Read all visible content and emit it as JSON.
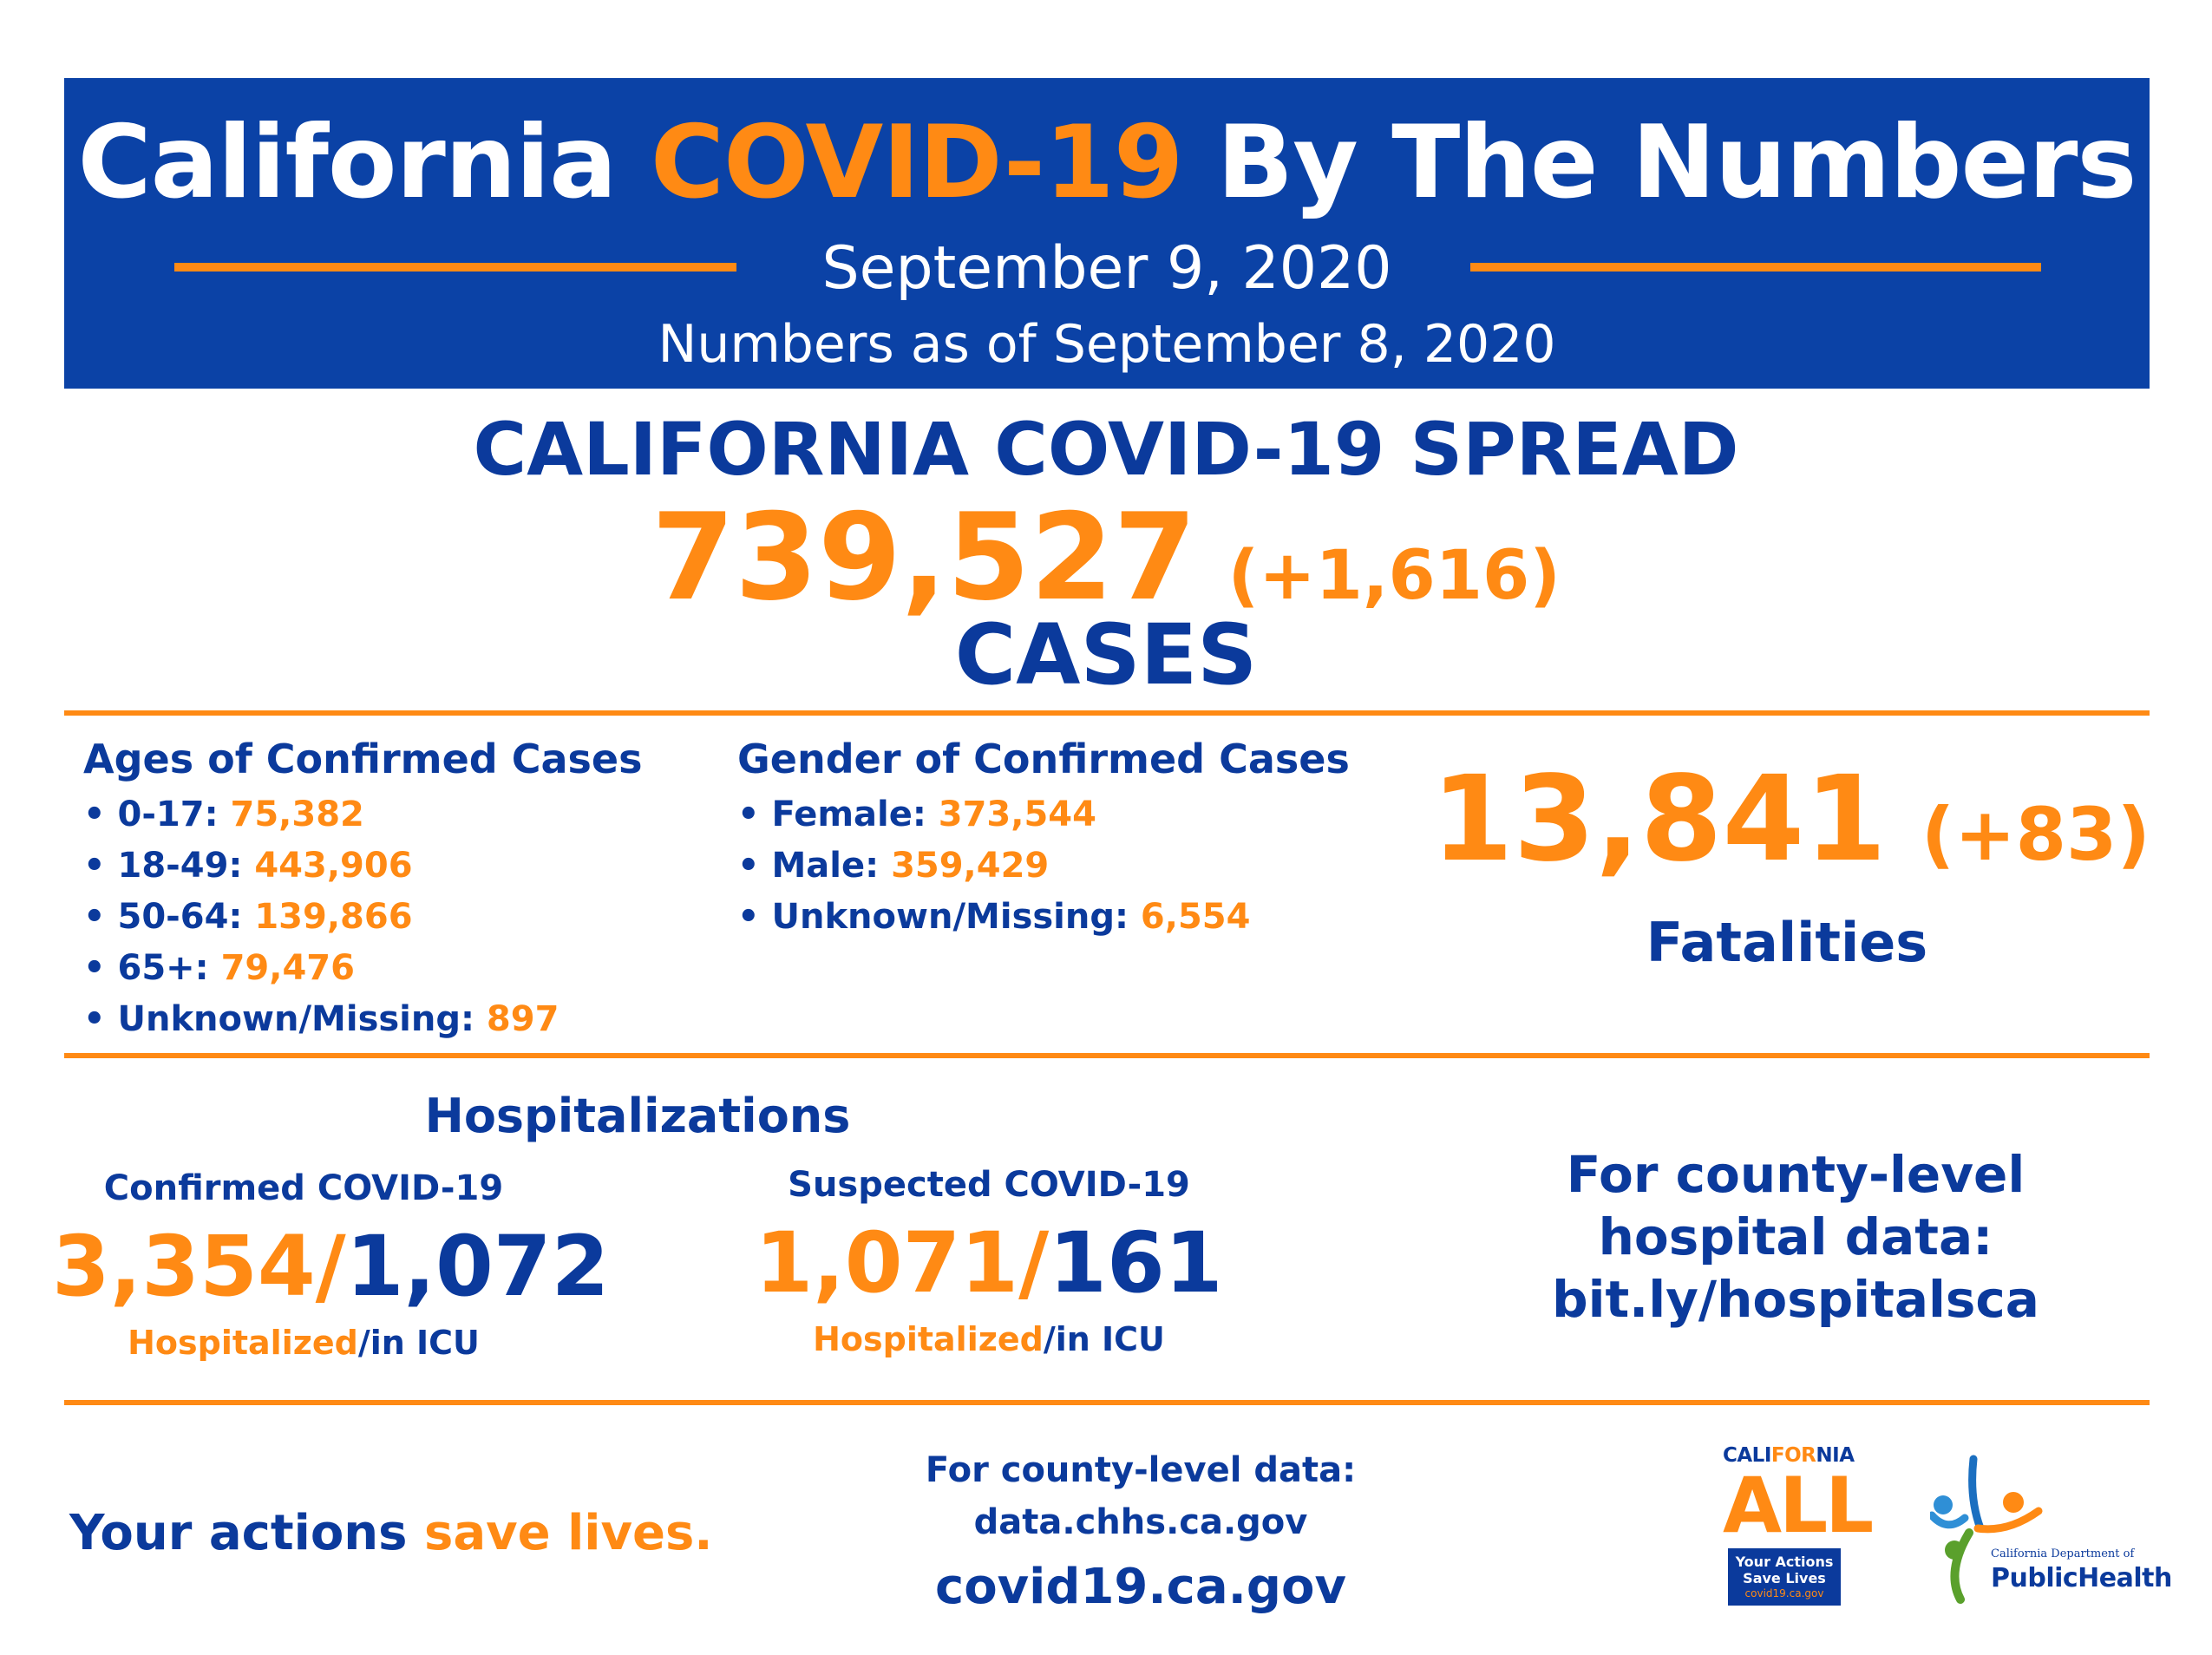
{
  "header": {
    "title_pre": "California ",
    "title_highlight": "COVID-19",
    "title_post": " By The Numbers",
    "date": "September 9, 2020",
    "as_of": "Numbers as of September 8, 2020"
  },
  "spread": {
    "title": "CALIFORNIA COVID-19 SPREAD",
    "cases_total": "739,527",
    "cases_change": "(+1,616)",
    "cases_label": "CASES"
  },
  "ages": {
    "title": "Ages of Confirmed Cases",
    "items": [
      {
        "label": "• 0-17: ",
        "value": "75,382"
      },
      {
        "label": "• 18-49: ",
        "value": "443,906"
      },
      {
        "label": "• 50-64: ",
        "value": "139,866"
      },
      {
        "label": "• 65+: ",
        "value": "79,476"
      },
      {
        "label": "• Unknown/Missing: ",
        "value": "897"
      }
    ]
  },
  "gender": {
    "title": "Gender of Confirmed Cases",
    "items": [
      {
        "label": "• Female: ",
        "value": "373,544"
      },
      {
        "label": "• Male: ",
        "value": "359,429"
      },
      {
        "label": "• Unknown/Missing: ",
        "value": "6,554"
      }
    ]
  },
  "fatalities": {
    "total": "13,841",
    "change": "(+83)",
    "label": "Fatalities"
  },
  "hospitalizations": {
    "title": "Hospitalizations",
    "confirmed": {
      "label": "Confirmed COVID-19",
      "hospitalized": "3,354/",
      "icu": "1,072",
      "sub_hospitalized": "Hospitalized",
      "sub_icu": "/in ICU"
    },
    "suspected": {
      "label": "Suspected COVID-19",
      "hospitalized": "1,071/",
      "icu": "161",
      "sub_hospitalized": "Hospitalized",
      "sub_icu": "/in ICU"
    },
    "county_line1": "For county-level",
    "county_line2": "hospital data:",
    "county_link": "bit.ly/hospitalsca"
  },
  "footer": {
    "save_pre": "Your actions ",
    "save_hl": "save lives.",
    "county_data_line1": "For county-level data:",
    "county_data_link": "data.chhs.ca.gov",
    "site": "covid19.ca.gov"
  },
  "logos": {
    "ca_all": {
      "word_pre": "CALI",
      "word_hl": "FOR",
      "word_post": "NIA",
      "all": "ALL",
      "box_line1": "Your Actions",
      "box_line2": "Save Lives",
      "box_url": "covid19.ca.gov"
    },
    "cdph": {
      "dept": "California Department of",
      "name": "PublicHealth"
    }
  },
  "colors": {
    "navy": "#0b3a9c",
    "banner": "#0b42a6",
    "orange": "#ff8a14"
  }
}
